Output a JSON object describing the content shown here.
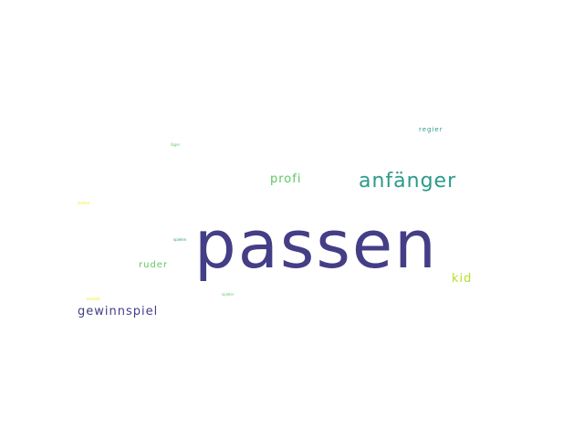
{
  "words": {
    "passen": "passen",
    "anfaenger": "anfänger",
    "gewinnspiel": "gewinnspiel",
    "profi": "profi",
    "kid": "kid",
    "ruder": "ruder",
    "regier": "regier",
    "small1": "läger",
    "small2": "ziehen",
    "small3": "spielen",
    "small4": "ansetzt",
    "small5": "spieler"
  },
  "colors": {
    "passen": "#433e85",
    "anfaenger": "#2a9a8a",
    "gewinnspiel": "#433e85",
    "profi": "#5ec962",
    "kid": "#b5de2b",
    "ruder": "#5ec962",
    "regier": "#2a9a8a",
    "small1": "#5ec962",
    "small2": "#fde725",
    "small3": "#2a9a8a",
    "small4": "#fde725",
    "small5": "#5ec962"
  }
}
